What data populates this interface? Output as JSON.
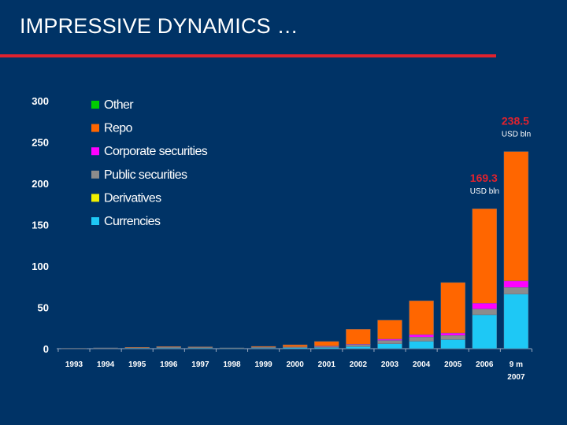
{
  "slide": {
    "title": "IMPRESSIVE DYNAMICS …"
  },
  "colors": {
    "background": "#003366",
    "accent_rule": "#e0222e",
    "axis": "#9aaac0"
  },
  "chart_data": {
    "type": "bar",
    "stacked": true,
    "title": "",
    "xlabel": "",
    "ylabel": "",
    "ylim": [
      0,
      300
    ],
    "yticks": [
      0,
      50,
      100,
      150,
      200,
      250,
      300
    ],
    "categories": [
      "1993",
      "1994",
      "1995",
      "1996",
      "1997",
      "1998",
      "1999",
      "2000",
      "2001",
      "2002",
      "2003",
      "2004",
      "2005",
      "2006",
      "9 m 2007"
    ],
    "legend_position": "top-left",
    "series": [
      {
        "name": "Currencies",
        "color": "#1ec8f5",
        "values": [
          0.3,
          0.8,
          1.2,
          0.8,
          0.6,
          0.4,
          0.8,
          1.2,
          1.5,
          2.5,
          6,
          9,
          11,
          41,
          66
        ]
      },
      {
        "name": "Derivatives",
        "color": "#f0f000",
        "values": [
          0,
          0,
          0,
          0,
          0,
          0,
          0,
          0,
          0,
          0,
          0,
          0,
          0,
          0,
          0
        ]
      },
      {
        "name": "Public securities",
        "color": "#8c8c8c",
        "values": [
          0.2,
          0.2,
          0.3,
          1.2,
          1.2,
          0.6,
          1.0,
          1.0,
          1.5,
          2.5,
          4,
          5,
          5,
          7,
          8
        ]
      },
      {
        "name": "Corporate securities",
        "color": "#ff00ff",
        "values": [
          0,
          0,
          0,
          0,
          0,
          0,
          0,
          0,
          0.2,
          0.5,
          1.5,
          3,
          3,
          7,
          8
        ]
      },
      {
        "name": "Repo",
        "color": "#ff6600",
        "values": [
          0,
          0,
          0.1,
          0.6,
          0.5,
          0,
          1.0,
          2.5,
          5.5,
          18,
          23,
          41,
          61,
          114.3,
          156.5
        ]
      },
      {
        "name": "Other",
        "color": "#00cc00",
        "values": [
          0,
          0,
          0,
          0,
          0,
          0,
          0,
          0,
          0,
          0,
          0,
          0,
          0,
          0,
          0
        ]
      }
    ],
    "legend_order": [
      "Other",
      "Repo",
      "Corporate securities",
      "Public securities",
      "Derivatives",
      "Currencies"
    ],
    "annotations": [
      {
        "category": "2006",
        "total": "169.3",
        "unit": "USD bln"
      },
      {
        "category": "9 m 2007",
        "total": "238.5",
        "unit": "USD bln"
      }
    ]
  }
}
